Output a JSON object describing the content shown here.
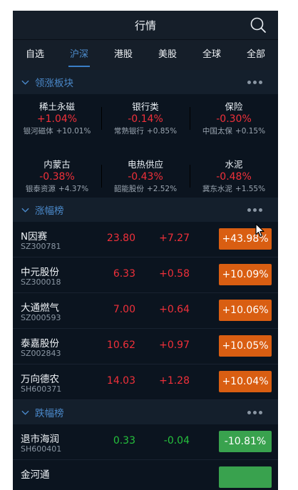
{
  "header": {
    "title": "行情",
    "search_icon": "search-icon"
  },
  "tabs": [
    {
      "label": "自选",
      "active": false
    },
    {
      "label": "沪深",
      "active": true
    },
    {
      "label": "港股",
      "active": false
    },
    {
      "label": "美股",
      "active": false
    },
    {
      "label": "全球",
      "active": false
    },
    {
      "label": "全部",
      "active": false
    }
  ],
  "sections": {
    "leading": {
      "title": "领涨板块"
    },
    "gainers": {
      "title": "涨幅榜"
    },
    "losers": {
      "title": "跌幅榜"
    }
  },
  "sectors": [
    {
      "name": "稀土永磁",
      "pct": "+1.04%",
      "lead_name": "银河磁体",
      "lead_pct": "+10.01%"
    },
    {
      "name": "银行类",
      "pct": "-0.14%",
      "lead_name": "常熟银行",
      "lead_pct": "+0.85%"
    },
    {
      "name": "保险",
      "pct": "-0.30%",
      "lead_name": "中国太保",
      "lead_pct": "+0.15%"
    },
    {
      "name": "内蒙古",
      "pct": "-0.38%",
      "lead_name": "银泰资源",
      "lead_pct": "+4.37%"
    },
    {
      "name": "电热供应",
      "pct": "-0.43%",
      "lead_name": "韶能股份",
      "lead_pct": "+2.52%"
    },
    {
      "name": "水泥",
      "pct": "-0.48%",
      "lead_name": "冀东水泥",
      "lead_pct": "+1.55%"
    }
  ],
  "gainers": [
    {
      "name": "N因赛",
      "code": "SZ300781",
      "price": "23.80",
      "change": "+7.27",
      "pct": "+43.98%"
    },
    {
      "name": "中元股份",
      "code": "SZ300018",
      "price": "6.33",
      "change": "+0.58",
      "pct": "+10.09%"
    },
    {
      "name": "大通燃气",
      "code": "SZ000593",
      "price": "7.00",
      "change": "+0.64",
      "pct": "+10.06%"
    },
    {
      "name": "泰嘉股份",
      "code": "SZ002843",
      "price": "10.62",
      "change": "+0.97",
      "pct": "+10.05%"
    },
    {
      "name": "万向德农",
      "code": "SH600371",
      "price": "14.03",
      "change": "+1.28",
      "pct": "+10.04%"
    }
  ],
  "losers": [
    {
      "name": "退市海润",
      "code": "SH600401",
      "price": "0.33",
      "change": "-0.04",
      "pct": "-10.81%"
    }
  ],
  "partial_row": {
    "name": "金河通"
  },
  "colors": {
    "up": "#f0303a",
    "down": "#25c13c",
    "up_badge": "#d95e12",
    "down_badge": "#39a24e",
    "accent": "#4a88c9"
  }
}
